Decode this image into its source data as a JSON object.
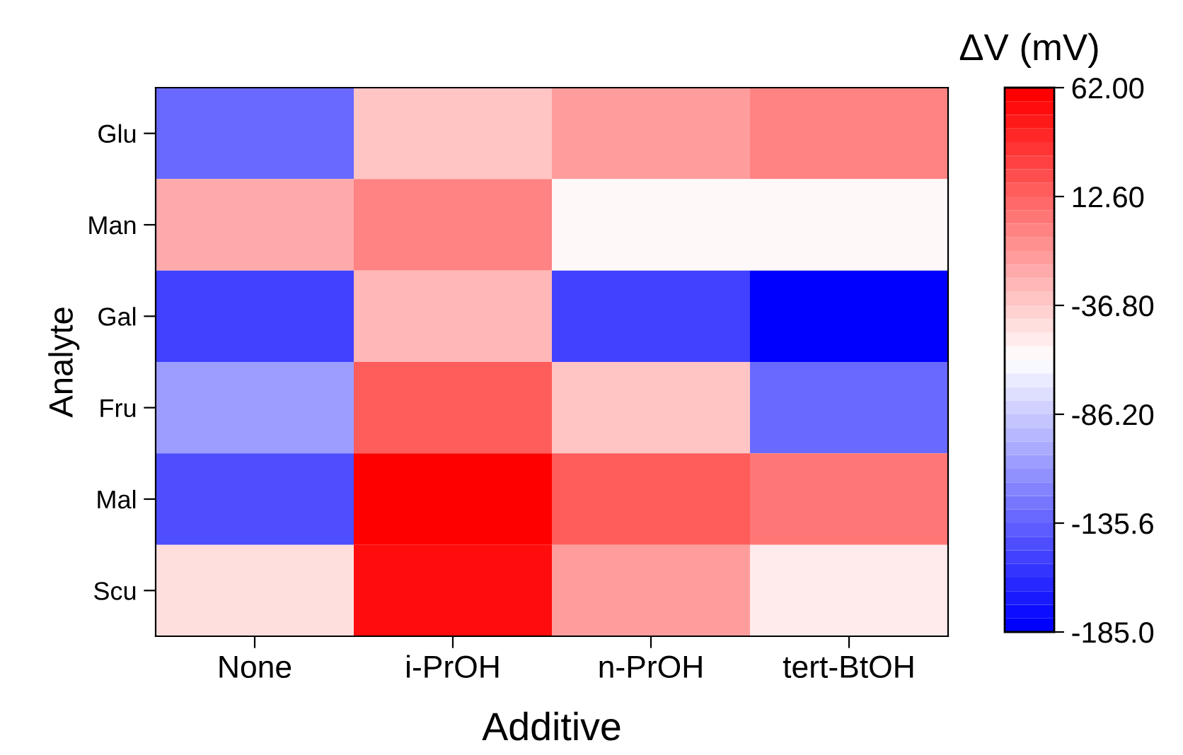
{
  "chart_data": {
    "type": "heatmap",
    "xlabel": "Additive",
    "ylabel": "Analyte",
    "clabel": "ΔV (mV)",
    "categories": [
      "None",
      "i-PrOH",
      "n-PrOH",
      "tert-BtOH"
    ],
    "y_categories": [
      "Glu",
      "Man",
      "Gal",
      "Fru",
      "Mal",
      "Scu"
    ],
    "cells": [
      [
        -135,
        -34,
        -16,
        -5
      ],
      [
        -23,
        -4,
        -56,
        -56
      ],
      [
        -154,
        -25,
        -152,
        -185
      ],
      [
        -107,
        13,
        -32,
        -135
      ],
      [
        -143,
        62,
        16,
        3
      ],
      [
        -49,
        50,
        -16,
        -50
      ]
    ],
    "clim": [
      -185,
      62
    ],
    "cticks": [
      {
        "value": -185,
        "label": "-185.0"
      },
      {
        "value": -135.6,
        "label": "-135.6"
      },
      {
        "value": -86.2,
        "label": "-86.20"
      },
      {
        "value": -36.8,
        "label": "-36.80"
      },
      {
        "value": 12.6,
        "label": "12.60"
      },
      {
        "value": 62,
        "label": "62.00"
      }
    ]
  }
}
